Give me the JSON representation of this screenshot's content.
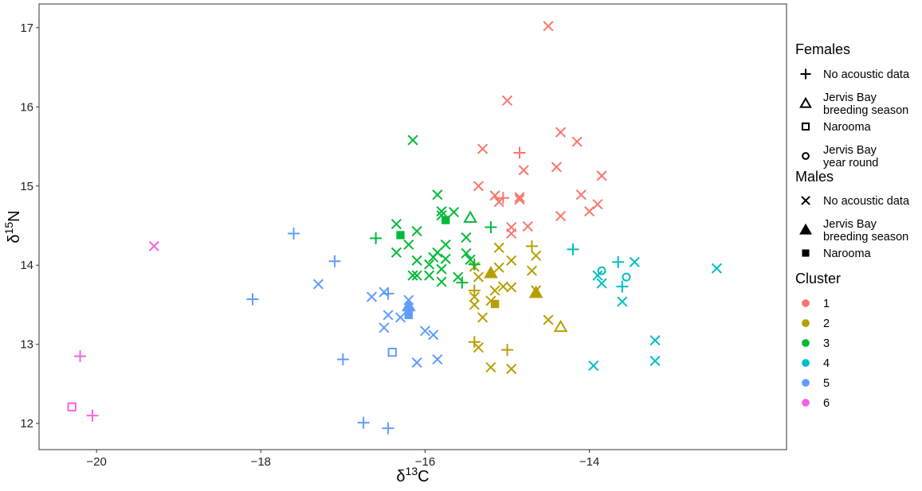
{
  "chart_data": {
    "type": "scatter",
    "xlabel": "δ13C",
    "ylabel": "δ15N",
    "xlim": [
      -20.7,
      -11.6
    ],
    "ylim": [
      11.67,
      17.3
    ],
    "x_ticks": [
      -20,
      -18,
      -16,
      -14
    ],
    "x_tick_labels": [
      "−20",
      "−18",
      "−16",
      "−14"
    ],
    "y_ticks": [
      12,
      13,
      14,
      15,
      16,
      17
    ],
    "y_tick_labels": [
      "12",
      "13",
      "14",
      "15",
      "16",
      "17"
    ],
    "grid": false,
    "legend_position": "right",
    "legend": {
      "females_title": "Females",
      "females": [
        {
          "shape": "plus",
          "label": [
            "No acoustic data"
          ]
        },
        {
          "shape": "triangle-open",
          "label": [
            "Jervis Bay",
            "breeding season"
          ]
        },
        {
          "shape": "square-open",
          "label": [
            "Narooma"
          ]
        },
        {
          "shape": "circle-open",
          "label": [
            "Jervis Bay",
            "year round"
          ]
        }
      ],
      "males_title": "Males",
      "males": [
        {
          "shape": "cross",
          "label": [
            "No acoustic data"
          ]
        },
        {
          "shape": "triangle-filled",
          "label": [
            "Jervis Bay",
            "breeding season"
          ]
        },
        {
          "shape": "square-filled",
          "label": [
            "Narooma"
          ]
        }
      ],
      "cluster_title": "Cluster",
      "clusters": [
        "1",
        "2",
        "3",
        "4",
        "5",
        "6"
      ]
    },
    "cluster_colors": {
      "1": "#F8766D",
      "2": "#B79F00",
      "3": "#00BA38",
      "4": "#00BFC4",
      "5": "#619CFF",
      "6": "#F564E3"
    },
    "series": [
      {
        "cluster": "1",
        "points": [
          {
            "x": -14.5,
            "y": 17.02,
            "shape": "cross"
          },
          {
            "x": -15.0,
            "y": 16.08,
            "shape": "cross"
          },
          {
            "x": -14.35,
            "y": 15.68,
            "shape": "cross"
          },
          {
            "x": -14.15,
            "y": 15.56,
            "shape": "cross"
          },
          {
            "x": -15.3,
            "y": 15.47,
            "shape": "cross"
          },
          {
            "x": -14.85,
            "y": 15.42,
            "shape": "plus"
          },
          {
            "x": -14.4,
            "y": 15.24,
            "shape": "cross"
          },
          {
            "x": -14.8,
            "y": 15.2,
            "shape": "cross"
          },
          {
            "x": -13.85,
            "y": 15.13,
            "shape": "cross"
          },
          {
            "x": -15.35,
            "y": 15.0,
            "shape": "cross"
          },
          {
            "x": -15.15,
            "y": 14.88,
            "shape": "cross"
          },
          {
            "x": -15.05,
            "y": 14.85,
            "shape": "plus"
          },
          {
            "x": -14.85,
            "y": 14.86,
            "shape": "cross"
          },
          {
            "x": -14.1,
            "y": 14.89,
            "shape": "cross"
          },
          {
            "x": -15.1,
            "y": 14.8,
            "shape": "cross"
          },
          {
            "x": -14.85,
            "y": 14.83,
            "shape": "cross"
          },
          {
            "x": -13.9,
            "y": 14.77,
            "shape": "cross"
          },
          {
            "x": -14.0,
            "y": 14.68,
            "shape": "cross"
          },
          {
            "x": -14.75,
            "y": 14.49,
            "shape": "cross"
          },
          {
            "x": -14.95,
            "y": 14.48,
            "shape": "cross"
          },
          {
            "x": -14.95,
            "y": 14.4,
            "shape": "cross"
          },
          {
            "x": -14.35,
            "y": 14.62,
            "shape": "cross"
          }
        ]
      },
      {
        "cluster": "2",
        "points": [
          {
            "x": -14.7,
            "y": 14.24,
            "shape": "plus"
          },
          {
            "x": -15.1,
            "y": 14.22,
            "shape": "cross"
          },
          {
            "x": -14.65,
            "y": 14.12,
            "shape": "cross"
          },
          {
            "x": -14.95,
            "y": 14.06,
            "shape": "cross"
          },
          {
            "x": -15.1,
            "y": 13.97,
            "shape": "cross"
          },
          {
            "x": -15.4,
            "y": 13.98,
            "shape": "cross"
          },
          {
            "x": -14.7,
            "y": 13.93,
            "shape": "cross"
          },
          {
            "x": -15.2,
            "y": 13.9,
            "shape": "triangle-filled"
          },
          {
            "x": -15.35,
            "y": 13.85,
            "shape": "cross"
          },
          {
            "x": -15.05,
            "y": 13.73,
            "shape": "cross"
          },
          {
            "x": -14.95,
            "y": 13.72,
            "shape": "cross"
          },
          {
            "x": -14.65,
            "y": 13.68,
            "shape": "cross"
          },
          {
            "x": -14.65,
            "y": 13.65,
            "shape": "triangle-filled"
          },
          {
            "x": -15.15,
            "y": 13.68,
            "shape": "cross"
          },
          {
            "x": -15.4,
            "y": 13.68,
            "shape": "plus"
          },
          {
            "x": -15.4,
            "y": 13.6,
            "shape": "cross"
          },
          {
            "x": -15.2,
            "y": 13.55,
            "shape": "cross"
          },
          {
            "x": -15.15,
            "y": 13.51,
            "shape": "square-filled"
          },
          {
            "x": -15.4,
            "y": 13.5,
            "shape": "cross"
          },
          {
            "x": -15.3,
            "y": 13.34,
            "shape": "cross"
          },
          {
            "x": -14.5,
            "y": 13.31,
            "shape": "cross"
          },
          {
            "x": -14.35,
            "y": 13.22,
            "shape": "triangle-open"
          },
          {
            "x": -15.4,
            "y": 13.03,
            "shape": "plus"
          },
          {
            "x": -15.35,
            "y": 12.96,
            "shape": "cross"
          },
          {
            "x": -15.0,
            "y": 12.93,
            "shape": "plus"
          },
          {
            "x": -15.2,
            "y": 12.71,
            "shape": "cross"
          },
          {
            "x": -14.95,
            "y": 12.69,
            "shape": "cross"
          }
        ]
      },
      {
        "cluster": "3",
        "points": [
          {
            "x": -16.15,
            "y": 15.58,
            "shape": "cross"
          },
          {
            "x": -15.85,
            "y": 14.89,
            "shape": "cross"
          },
          {
            "x": -15.8,
            "y": 14.68,
            "shape": "cross"
          },
          {
            "x": -15.65,
            "y": 14.67,
            "shape": "cross"
          },
          {
            "x": -15.8,
            "y": 14.63,
            "shape": "cross"
          },
          {
            "x": -15.45,
            "y": 14.6,
            "shape": "triangle-open"
          },
          {
            "x": -15.75,
            "y": 14.57,
            "shape": "square-filled"
          },
          {
            "x": -16.35,
            "y": 14.52,
            "shape": "cross"
          },
          {
            "x": -15.2,
            "y": 14.48,
            "shape": "plus"
          },
          {
            "x": -16.1,
            "y": 14.43,
            "shape": "cross"
          },
          {
            "x": -16.3,
            "y": 14.38,
            "shape": "square-filled"
          },
          {
            "x": -16.6,
            "y": 14.34,
            "shape": "plus"
          },
          {
            "x": -15.5,
            "y": 14.35,
            "shape": "cross"
          },
          {
            "x": -16.2,
            "y": 14.26,
            "shape": "cross"
          },
          {
            "x": -15.75,
            "y": 14.26,
            "shape": "cross"
          },
          {
            "x": -16.35,
            "y": 14.16,
            "shape": "cross"
          },
          {
            "x": -15.5,
            "y": 14.15,
            "shape": "cross"
          },
          {
            "x": -15.85,
            "y": 14.16,
            "shape": "cross"
          },
          {
            "x": -15.9,
            "y": 14.1,
            "shape": "cross"
          },
          {
            "x": -16.1,
            "y": 14.06,
            "shape": "cross"
          },
          {
            "x": -15.75,
            "y": 14.08,
            "shape": "cross"
          },
          {
            "x": -15.45,
            "y": 14.07,
            "shape": "cross"
          },
          {
            "x": -15.4,
            "y": 14.01,
            "shape": "plus"
          },
          {
            "x": -15.95,
            "y": 14.01,
            "shape": "cross"
          },
          {
            "x": -15.8,
            "y": 13.95,
            "shape": "cross"
          },
          {
            "x": -16.15,
            "y": 13.87,
            "shape": "cross"
          },
          {
            "x": -16.1,
            "y": 13.87,
            "shape": "cross"
          },
          {
            "x": -15.95,
            "y": 13.87,
            "shape": "cross"
          },
          {
            "x": -15.6,
            "y": 13.85,
            "shape": "cross"
          },
          {
            "x": -15.8,
            "y": 13.79,
            "shape": "cross"
          },
          {
            "x": -15.55,
            "y": 13.78,
            "shape": "plus"
          }
        ]
      },
      {
        "cluster": "4",
        "points": [
          {
            "x": -12.45,
            "y": 13.96,
            "shape": "cross"
          },
          {
            "x": -14.2,
            "y": 14.2,
            "shape": "plus"
          },
          {
            "x": -13.65,
            "y": 14.04,
            "shape": "plus"
          },
          {
            "x": -13.45,
            "y": 14.04,
            "shape": "cross"
          },
          {
            "x": -13.85,
            "y": 13.93,
            "shape": "circle-open"
          },
          {
            "x": -13.9,
            "y": 13.87,
            "shape": "cross"
          },
          {
            "x": -13.55,
            "y": 13.85,
            "shape": "circle-open"
          },
          {
            "x": -13.85,
            "y": 13.77,
            "shape": "cross"
          },
          {
            "x": -13.6,
            "y": 13.73,
            "shape": "plus"
          },
          {
            "x": -13.6,
            "y": 13.54,
            "shape": "cross"
          },
          {
            "x": -13.2,
            "y": 13.05,
            "shape": "cross"
          },
          {
            "x": -13.95,
            "y": 12.73,
            "shape": "cross"
          },
          {
            "x": -13.2,
            "y": 12.79,
            "shape": "cross"
          }
        ]
      },
      {
        "cluster": "5",
        "points": [
          {
            "x": -17.6,
            "y": 14.4,
            "shape": "plus"
          },
          {
            "x": -17.1,
            "y": 14.05,
            "shape": "plus"
          },
          {
            "x": -17.3,
            "y": 13.76,
            "shape": "cross"
          },
          {
            "x": -18.1,
            "y": 13.57,
            "shape": "plus"
          },
          {
            "x": -16.5,
            "y": 13.66,
            "shape": "cross"
          },
          {
            "x": -16.45,
            "y": 13.64,
            "shape": "plus"
          },
          {
            "x": -16.65,
            "y": 13.6,
            "shape": "cross"
          },
          {
            "x": -16.2,
            "y": 13.56,
            "shape": "cross"
          },
          {
            "x": -16.2,
            "y": 13.48,
            "shape": "triangle-filled"
          },
          {
            "x": -16.45,
            "y": 13.37,
            "shape": "cross"
          },
          {
            "x": -16.2,
            "y": 13.37,
            "shape": "square-filled"
          },
          {
            "x": -16.3,
            "y": 13.34,
            "shape": "cross"
          },
          {
            "x": -16.5,
            "y": 13.21,
            "shape": "cross"
          },
          {
            "x": -16.0,
            "y": 13.17,
            "shape": "cross"
          },
          {
            "x": -15.9,
            "y": 13.12,
            "shape": "cross"
          },
          {
            "x": -16.4,
            "y": 12.9,
            "shape": "square-open"
          },
          {
            "x": -17.0,
            "y": 12.81,
            "shape": "plus"
          },
          {
            "x": -15.85,
            "y": 12.81,
            "shape": "cross"
          },
          {
            "x": -16.1,
            "y": 12.77,
            "shape": "cross"
          },
          {
            "x": -16.75,
            "y": 12.01,
            "shape": "plus"
          },
          {
            "x": -16.45,
            "y": 11.94,
            "shape": "plus"
          }
        ]
      },
      {
        "cluster": "6",
        "points": [
          {
            "x": -19.3,
            "y": 14.24,
            "shape": "cross"
          },
          {
            "x": -20.2,
            "y": 12.85,
            "shape": "plus"
          },
          {
            "x": -20.3,
            "y": 12.21,
            "shape": "square-open"
          },
          {
            "x": -20.05,
            "y": 12.1,
            "shape": "plus"
          }
        ]
      }
    ]
  }
}
